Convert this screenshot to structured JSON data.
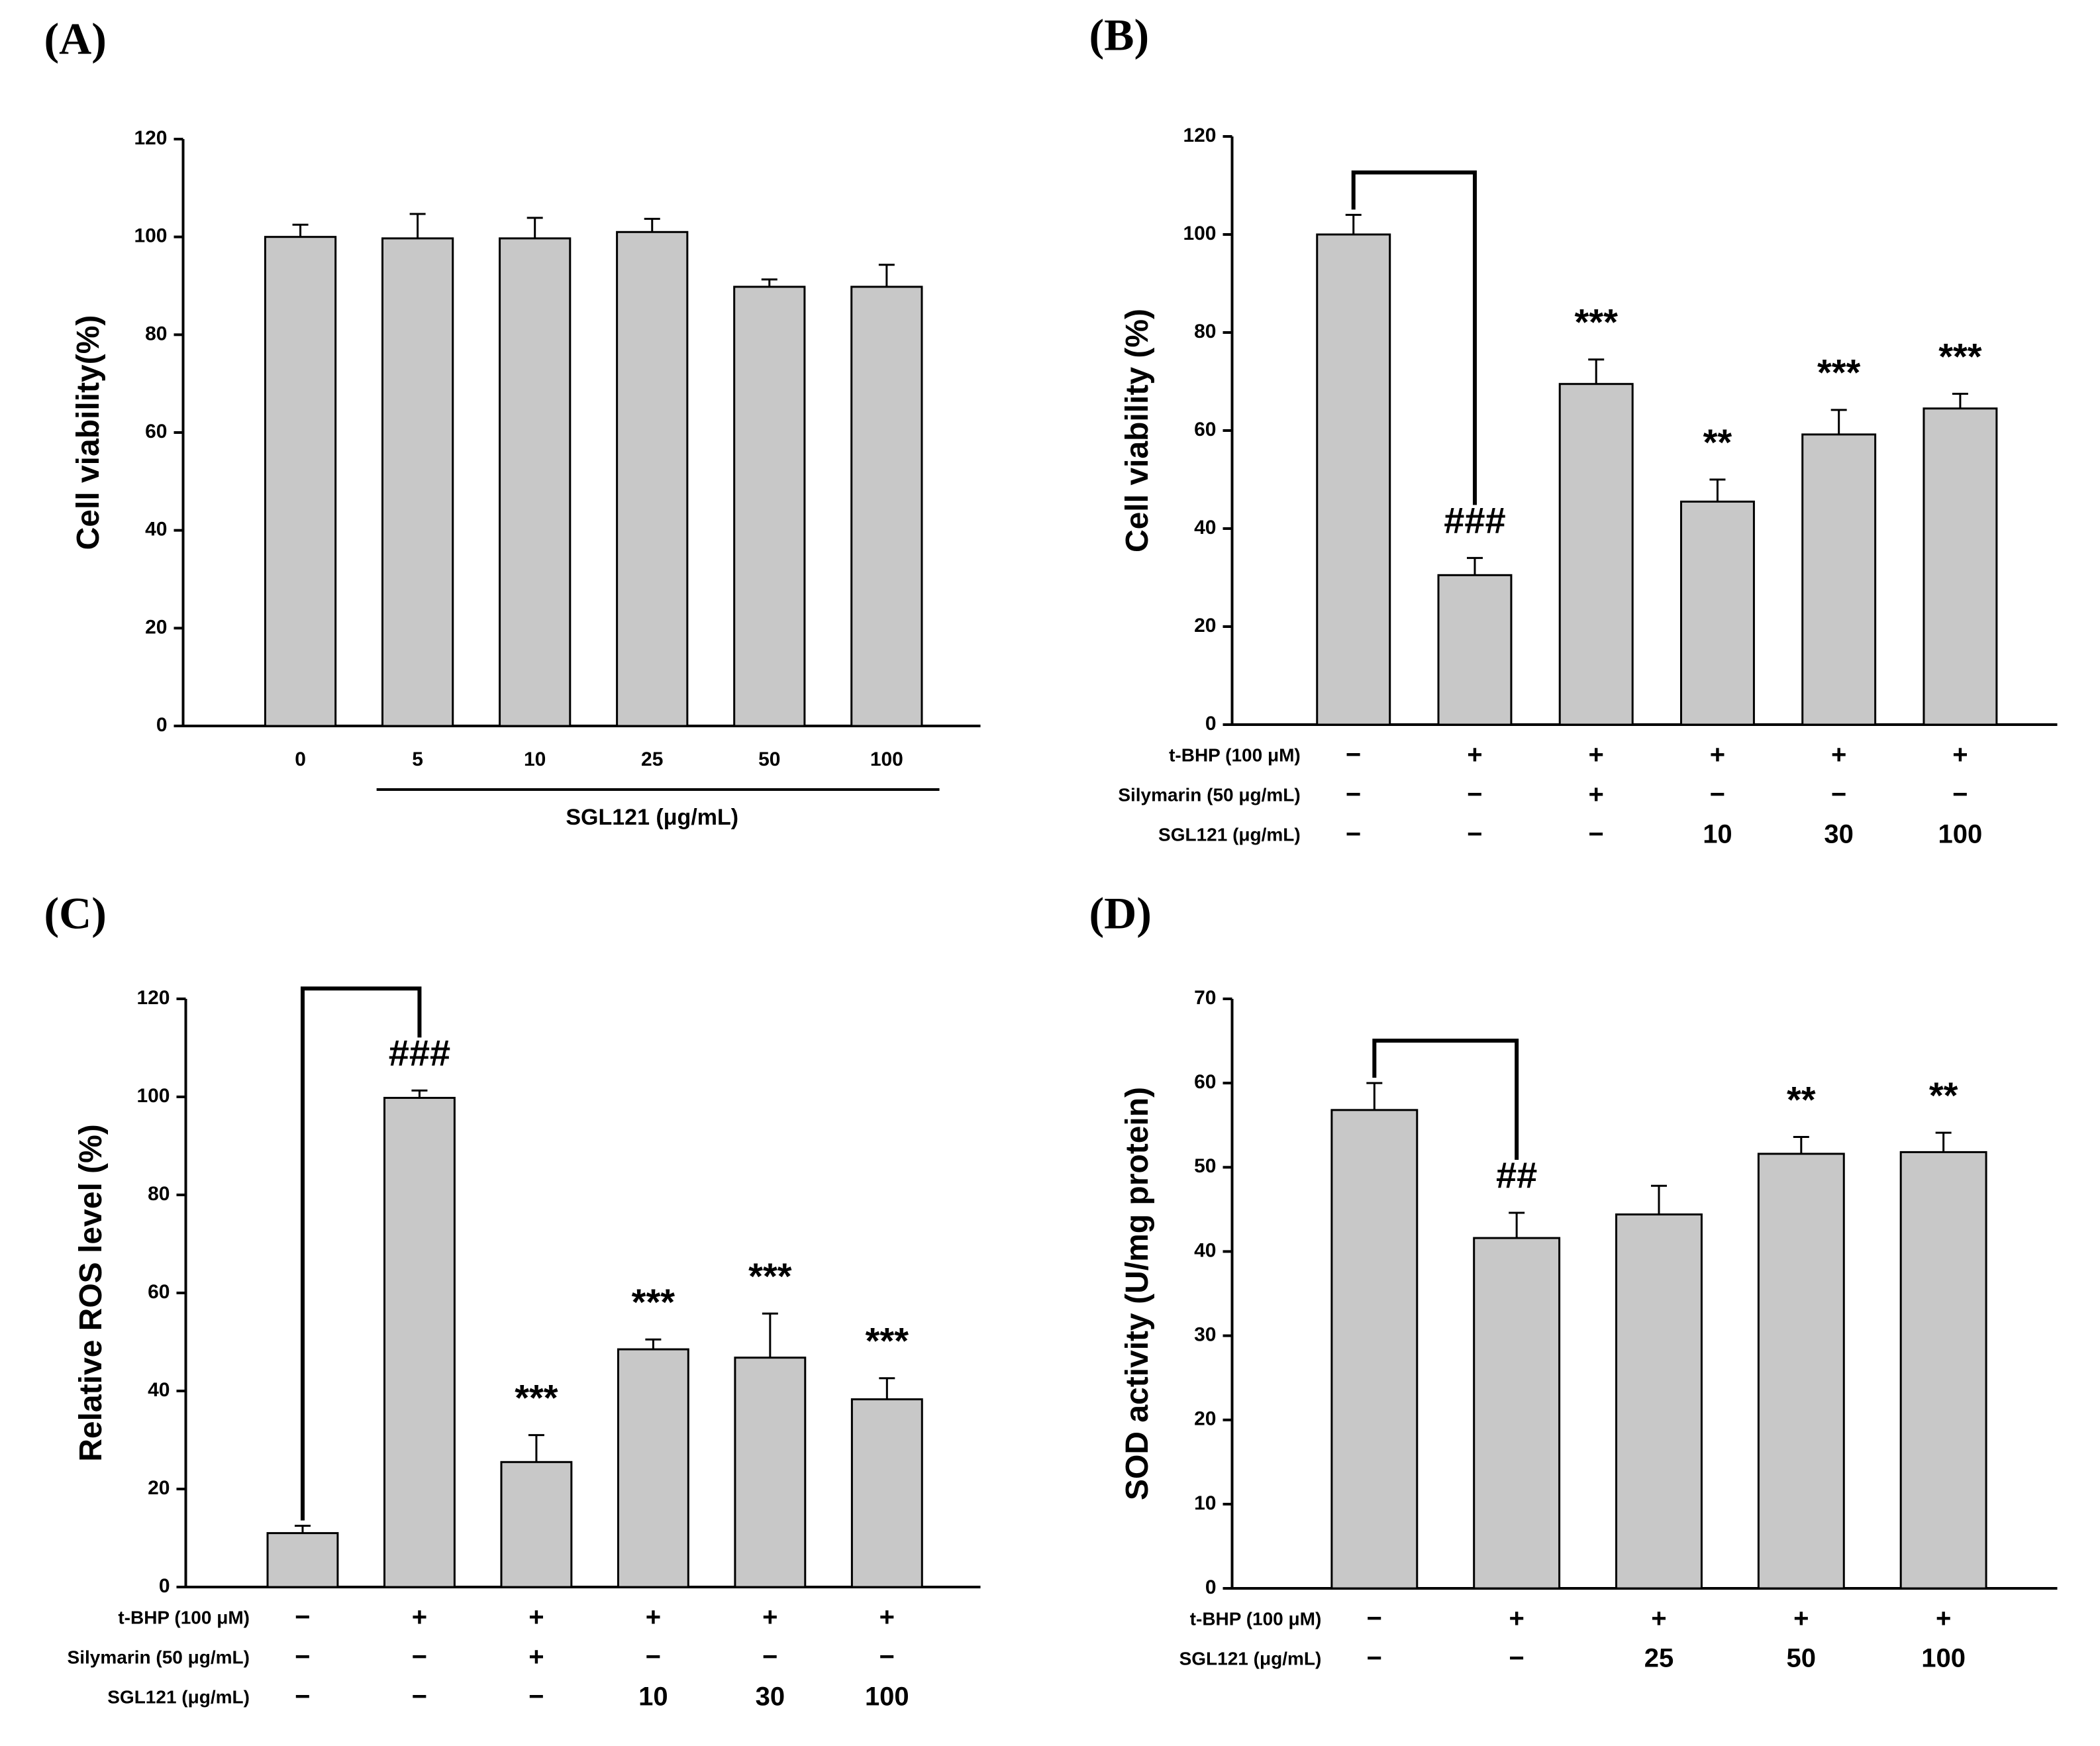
{
  "chart_data": [
    {
      "type": "bar",
      "panel": "(A)",
      "y_label": "Cell viability(%)",
      "x_label": "SGL121 (μg/mL)",
      "categories": [
        "0",
        "5",
        "10",
        "25",
        "50",
        "100"
      ],
      "values": [
        100,
        99.7,
        99.7,
        101,
        89.8,
        89.8
      ],
      "errors": [
        2.5,
        5,
        4.2,
        2.7,
        1.5,
        4.5
      ],
      "color": "#c8c8c8",
      "ylim": [
        0,
        120
      ],
      "yticks": [
        0,
        20,
        40,
        60,
        80,
        100,
        120
      ]
    },
    {
      "type": "bar",
      "panel": "(B)",
      "y_label": "Cell viability (%)",
      "conditions": [
        {
          "label": "t-BHP (100 μM)",
          "values": [
            "−",
            "+",
            "+",
            "+",
            "+",
            "+"
          ]
        },
        {
          "label": "Silymarin (50 μg/mL)",
          "values": [
            "−",
            "−",
            "+",
            "−",
            "−",
            "−"
          ]
        },
        {
          "label": "SGL121 (μg/mL)",
          "values": [
            "−",
            "−",
            "−",
            "10",
            "30",
            "100"
          ]
        }
      ],
      "values": [
        100,
        30.5,
        69.5,
        45.5,
        59.2,
        64.5
      ],
      "errors": [
        4,
        3.5,
        5,
        4.5,
        5,
        3
      ],
      "annotations": [
        null,
        "###",
        "***",
        "**",
        "***",
        "***"
      ],
      "bracket": true,
      "color": "#c8c8c8",
      "ylim": [
        0,
        120
      ],
      "yticks": [
        0,
        20,
        40,
        60,
        80,
        100,
        120
      ]
    },
    {
      "type": "bar",
      "panel": "(C)",
      "y_label": "Relative ROS level (%)",
      "conditions": [
        {
          "label": "t-BHP (100 μM)",
          "values": [
            "−",
            "+",
            "+",
            "+",
            "+",
            "+"
          ]
        },
        {
          "label": "Silymarin (50 μg/mL)",
          "values": [
            "−",
            "−",
            "+",
            "−",
            "−",
            "−"
          ]
        },
        {
          "label": "SGL121 (μg/mL)",
          "values": [
            "−",
            "−",
            "−",
            "10",
            "30",
            "100"
          ]
        }
      ],
      "values": [
        11,
        99.8,
        25.5,
        48.5,
        46.8,
        38.3
      ],
      "errors": [
        1.5,
        1.5,
        5.5,
        2,
        9,
        4.3
      ],
      "annotations": [
        null,
        "###",
        "***",
        "***",
        "***",
        "***"
      ],
      "bracket": true,
      "color": "#c8c8c8",
      "ylim": [
        0,
        120
      ],
      "yticks": [
        0,
        20,
        40,
        60,
        80,
        100,
        120
      ]
    },
    {
      "type": "bar",
      "panel": "(D)",
      "y_label": "SOD activity (U/mg protein)",
      "conditions": [
        {
          "label": "t-BHP (100 μM)",
          "values": [
            "−",
            "+",
            "+",
            "+",
            "+"
          ]
        },
        {
          "label": "SGL121 (μg/mL)",
          "values": [
            "−",
            "−",
            "25",
            "50",
            "100"
          ]
        }
      ],
      "values": [
        56.8,
        41.6,
        44.4,
        51.6,
        51.8
      ],
      "errors": [
        3.2,
        3,
        3.4,
        2,
        2.3
      ],
      "annotations": [
        null,
        "##",
        null,
        "**",
        "**"
      ],
      "bracket": true,
      "color": "#c8c8c8",
      "ylim": [
        0,
        70
      ],
      "yticks": [
        0,
        10,
        20,
        30,
        40,
        50,
        60,
        70
      ]
    }
  ]
}
